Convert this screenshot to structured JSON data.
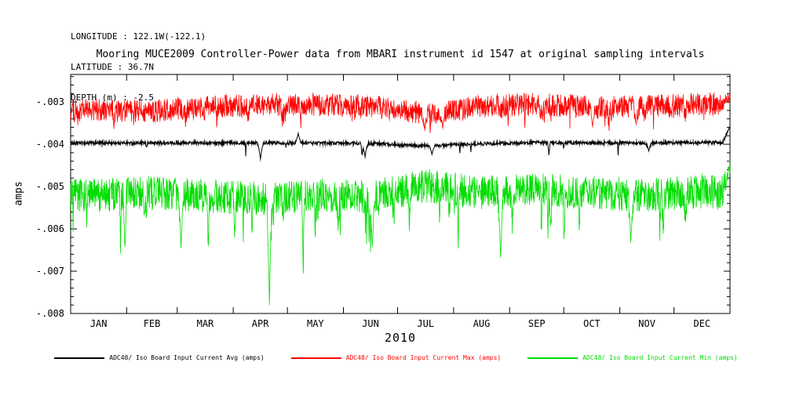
{
  "header": {
    "longitude": "LONGITUDE : 122.1W(-122.1)",
    "latitude": "LATITUDE : 36.7N",
    "depth": "DEPTH (m) : -2.5"
  },
  "chart_data": {
    "type": "line",
    "title": "Mooring MUCE2009 Controller-Power data from MBARI instrument id 1547 at original sampling intervals",
    "xlabel": "2010",
    "ylabel": "amps",
    "grid": false,
    "legend_position": "bottom",
    "x_tick_labels": [
      "JAN",
      "FEB",
      "MAR",
      "APR",
      "MAY",
      "JUN",
      "JUL",
      "AUG",
      "SEP",
      "OCT",
      "NOV",
      "DEC"
    ],
    "month_boundaries_days": [
      0,
      31,
      59,
      90,
      120,
      151,
      181,
      212,
      243,
      273,
      304,
      334,
      365
    ],
    "xlim_days": [
      0,
      365
    ],
    "y_ticks": [
      -0.003,
      -0.004,
      -0.005,
      -0.006,
      -0.007,
      -0.008
    ],
    "y_tick_labels": [
      "-.003",
      "-.004",
      "-.005",
      "-.006",
      "-.007",
      "-.008"
    ],
    "y_minor_tick_step": 0.0002,
    "ylim": [
      -0.008,
      -0.00235
    ],
    "series": [
      {
        "name": "ADC48/ Iso Board Input Current Avg (amps)",
        "color": "#000000",
        "monthly_levels": [
          -0.00397,
          -0.00397,
          -0.00397,
          -0.00396,
          -0.00397,
          -0.00398,
          -0.00404,
          -0.00399,
          -0.00396,
          -0.00397,
          -0.00397,
          -0.00396
        ],
        "noise_amplitude": 4e-05,
        "spike_depth": 0.0003,
        "spike_probability": 0.004,
        "end_rise_value": -0.00358,
        "events": [
          {
            "day": 105,
            "value": -0.00435
          },
          {
            "day": 126,
            "value": -0.00374
          },
          {
            "day": 163,
            "value": -0.0043
          },
          {
            "day": 200,
            "value": -0.00424
          },
          {
            "day": 320,
            "value": -0.00416
          }
        ]
      },
      {
        "name": "ADC48/ Iso Board Input Current Max (amps)",
        "color": "#ff0000",
        "monthly_levels": [
          -0.0032,
          -0.00322,
          -0.00313,
          -0.00306,
          -0.00307,
          -0.0031,
          -0.00327,
          -0.0031,
          -0.00305,
          -0.00313,
          -0.0031,
          -0.00304
        ],
        "noise_amplitude": 0.00027,
        "spike_depth": 0.00042,
        "spike_probability": 0.02,
        "end_rise_value": -0.00285,
        "events": [
          {
            "day": 196,
            "value": -0.00366
          },
          {
            "day": 206,
            "value": -0.00362
          },
          {
            "day": 289,
            "value": -0.00358
          },
          {
            "day": 313,
            "value": -0.00352
          }
        ]
      },
      {
        "name": "ADC48/ Iso Board Input Current Min (amps)",
        "color": "#00dd00",
        "monthly_levels": [
          -0.0052,
          -0.00515,
          -0.00522,
          -0.00528,
          -0.0052,
          -0.00525,
          -0.00498,
          -0.00515,
          -0.00508,
          -0.00515,
          -0.0052,
          -0.00512
        ],
        "noise_amplitude": 0.0004,
        "spike_depth": 0.00115,
        "spike_probability": 0.02,
        "end_rise_value": -0.00448,
        "events": [
          {
            "day": 61,
            "value": -0.00645
          },
          {
            "day": 110,
            "value": -0.0078
          },
          {
            "day": 167,
            "value": -0.00642
          },
          {
            "day": 238,
            "value": -0.00668
          },
          {
            "day": 310,
            "value": -0.00632
          }
        ]
      }
    ]
  }
}
